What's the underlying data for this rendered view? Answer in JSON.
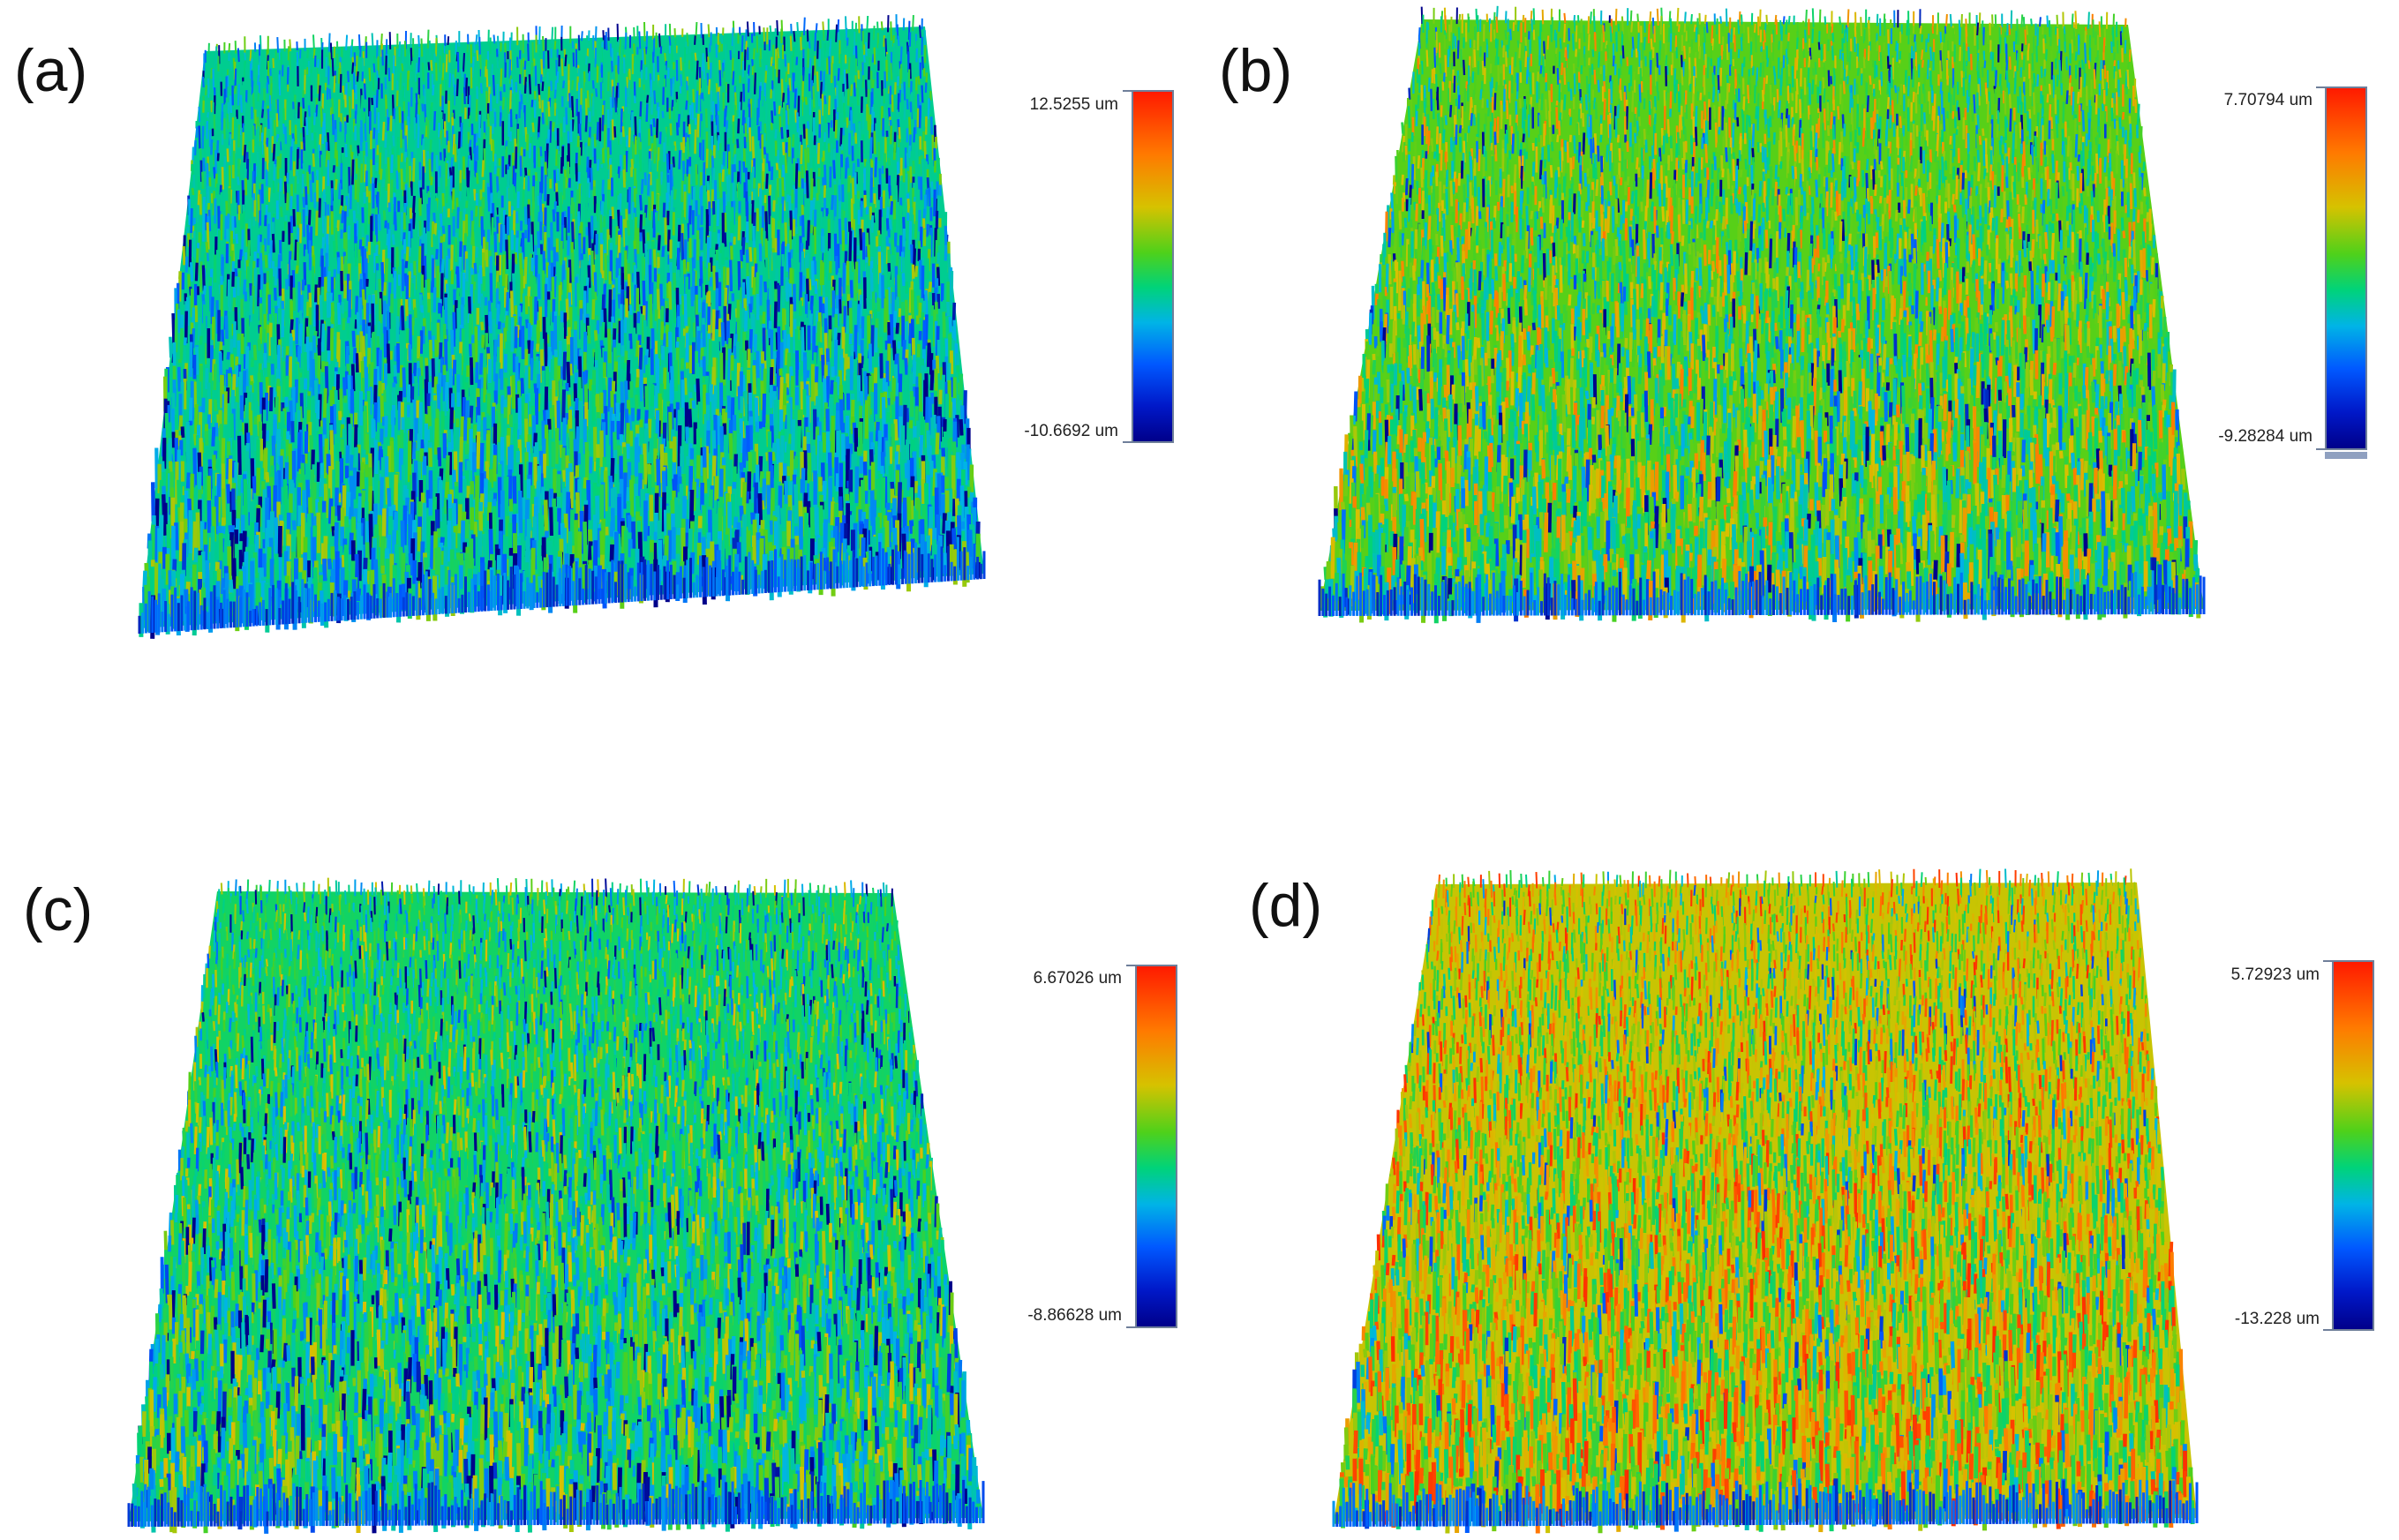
{
  "panels": [
    {
      "label": "(a)",
      "scale_max": "12.5255 um",
      "scale_min": "-10.6692 um",
      "dominant_colors": [
        "#1d4fc4",
        "#24a86a",
        "#3ec23b"
      ]
    },
    {
      "label": "(b)",
      "scale_max": "7.70794 um",
      "scale_min": "-9.28284 um",
      "dominant_colors": [
        "#58c61e",
        "#8fbf16",
        "#2a6bd0"
      ]
    },
    {
      "label": "(c)",
      "scale_max": "6.67026 um",
      "scale_min": "-8.86628 um",
      "dominant_colors": [
        "#2b9be0",
        "#4cbf35",
        "#1f46c0"
      ]
    },
    {
      "label": "(d)",
      "scale_max": "5.72923 um",
      "scale_min": "-13.228 um",
      "dominant_colors": [
        "#c9862a",
        "#7fb32a",
        "#d04a1c"
      ]
    }
  ],
  "colormap": [
    "#00008a",
    "#0058ff",
    "#00b4e6",
    "#00d37a",
    "#4fd11a",
    "#d6c200",
    "#ff7a00",
    "#ff1a00"
  ]
}
